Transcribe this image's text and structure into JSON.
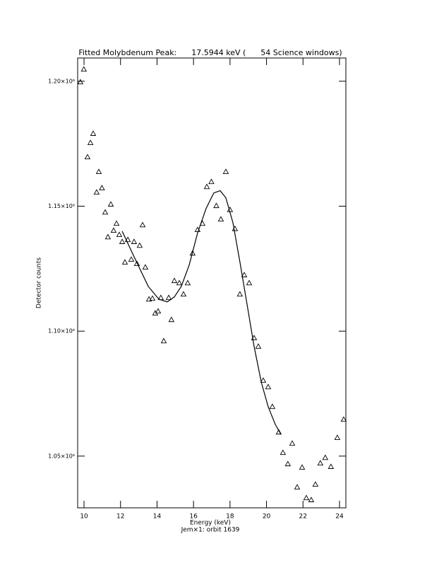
{
  "chart_data": {
    "type": "scatter",
    "title": "Fitted Molybdenum Peak:      17.5944 keV (      54 Science windows)",
    "x_label": "Energy (keV)",
    "subtitle": "Jem×1: orbit 1639",
    "y_label": "Detector counts",
    "xlim": [
      9.65,
      24.35
    ],
    "ylim": [
      1029300,
      1209300
    ],
    "xticks": [
      10,
      12,
      14,
      16,
      18,
      20,
      22,
      24
    ],
    "yticks": [
      {
        "value": 1050000,
        "label": "1.05×10⁶"
      },
      {
        "value": 1100000,
        "label": "1.10×10⁶"
      },
      {
        "value": 1150000,
        "label": "1.15×10⁶"
      },
      {
        "value": 1200000,
        "label": "1.20×10⁶"
      }
    ],
    "series": [
      {
        "type": "scatter",
        "marker": "triangle",
        "color": "#000000",
        "x": [
          9.8,
          9.99,
          10.19,
          10.35,
          10.5,
          10.81,
          10.69,
          10.98,
          11.16,
          11.31,
          11.47,
          11.62,
          11.78,
          11.93,
          12.09,
          12.24,
          12.4,
          12.59,
          12.74,
          12.9,
          13.05,
          13.21,
          13.36,
          13.56,
          13.75,
          13.9,
          14.06,
          14.21,
          14.37,
          14.64,
          14.79,
          14.95,
          15.22,
          15.45,
          15.68,
          15.95,
          16.22,
          16.49,
          16.73,
          16.98,
          17.25,
          17.5,
          17.77,
          18.0,
          18.27,
          18.54,
          18.78,
          19.05,
          19.32,
          19.55,
          19.82,
          20.09,
          20.32,
          20.67,
          20.9,
          21.17,
          21.41,
          21.68,
          21.95,
          22.18,
          22.45,
          22.68,
          22.95,
          23.22,
          23.53,
          23.88,
          24.23
        ],
        "values": [
          1199700,
          1204800,
          1169700,
          1175400,
          1179100,
          1163800,
          1155600,
          1157300,
          1147600,
          1137700,
          1150800,
          1140300,
          1143100,
          1138600,
          1135800,
          1127600,
          1136600,
          1128700,
          1135800,
          1127000,
          1134300,
          1142500,
          1125600,
          1112800,
          1113100,
          1107200,
          1108000,
          1113400,
          1096100,
          1113400,
          1104600,
          1120200,
          1119300,
          1114800,
          1119300,
          1131200,
          1140600,
          1143100,
          1157800,
          1159800,
          1150200,
          1144800,
          1163800,
          1148600,
          1141000,
          1114800,
          1122500,
          1119300,
          1097300,
          1093900,
          1080300,
          1077700,
          1069800,
          1059600,
          1051400,
          1046900,
          1055100,
          1037600,
          1045500,
          1033300,
          1032500,
          1038700,
          1047200,
          1049400,
          1045800,
          1057400,
          1064700
        ]
      },
      {
        "type": "line",
        "color": "#000000",
        "x": [
          12.09,
          12.74,
          13.52,
          14.1,
          14.56,
          14.95,
          15.33,
          15.76,
          16.22,
          16.69,
          17.11,
          17.46,
          17.77,
          18.16,
          18.54,
          18.93,
          19.32,
          19.71,
          20.09,
          20.48,
          20.79
        ],
        "values": [
          1140000,
          1129800,
          1117900,
          1112800,
          1111700,
          1113700,
          1117900,
          1126400,
          1139200,
          1149100,
          1155300,
          1156200,
          1153400,
          1143400,
          1127800,
          1110900,
          1093900,
          1079700,
          1069800,
          1062700,
          1058700
        ]
      }
    ]
  }
}
